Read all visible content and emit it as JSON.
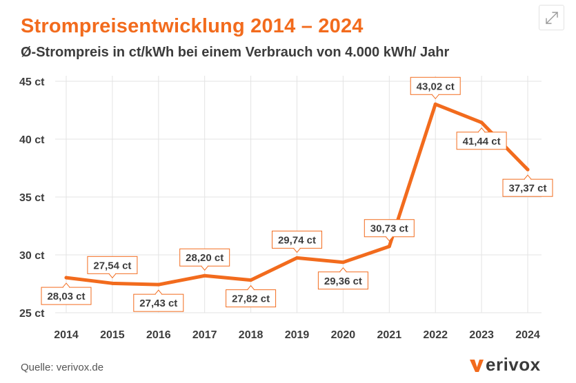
{
  "title": "Strompreisentwicklung 2014 – 2024",
  "subtitle": "Ø-Strompreis in ct/kWh bei einem Verbrauch von 4.000 kWh/ Jahr",
  "source": "Quelle: verivox.de",
  "logo": {
    "rest": "erivox"
  },
  "colors": {
    "accent": "#f26b1d",
    "grid": "#e3e3e3",
    "text": "#3c3c3c"
  },
  "icons": {
    "expand": "expand-arrows-icon",
    "logo": "verivox-v-icon"
  },
  "chart_data": {
    "type": "line",
    "title": "Strompreisentwicklung 2014 – 2024",
    "subtitle": "Ø-Strompreis in ct/kWh bei einem Verbrauch von 4.000 kWh/ Jahr",
    "xlabel": "",
    "ylabel": "",
    "categories": [
      "2014",
      "2015",
      "2016",
      "2017",
      "2018",
      "2019",
      "2020",
      "2021",
      "2022",
      "2023",
      "2024"
    ],
    "values": [
      28.03,
      27.54,
      27.43,
      28.2,
      27.82,
      29.74,
      29.36,
      30.73,
      43.02,
      41.44,
      37.37
    ],
    "data_labels": [
      "28,03 ct",
      "27,54 ct",
      "27,43 ct",
      "28,20 ct",
      "27,82 ct",
      "29,74 ct",
      "29,36 ct",
      "30,73 ct",
      "43,02 ct",
      "41,44 ct",
      "37,37 ct"
    ],
    "label_positions": [
      "below",
      "above",
      "below",
      "above",
      "below",
      "above",
      "below",
      "above",
      "above",
      "below",
      "below"
    ],
    "ylim": [
      25,
      45
    ],
    "yticks": [
      25,
      30,
      35,
      40,
      45
    ],
    "ytick_labels": [
      "25 ct",
      "30 ct",
      "35 ct",
      "40 ct",
      "45 ct"
    ],
    "grid": true
  }
}
